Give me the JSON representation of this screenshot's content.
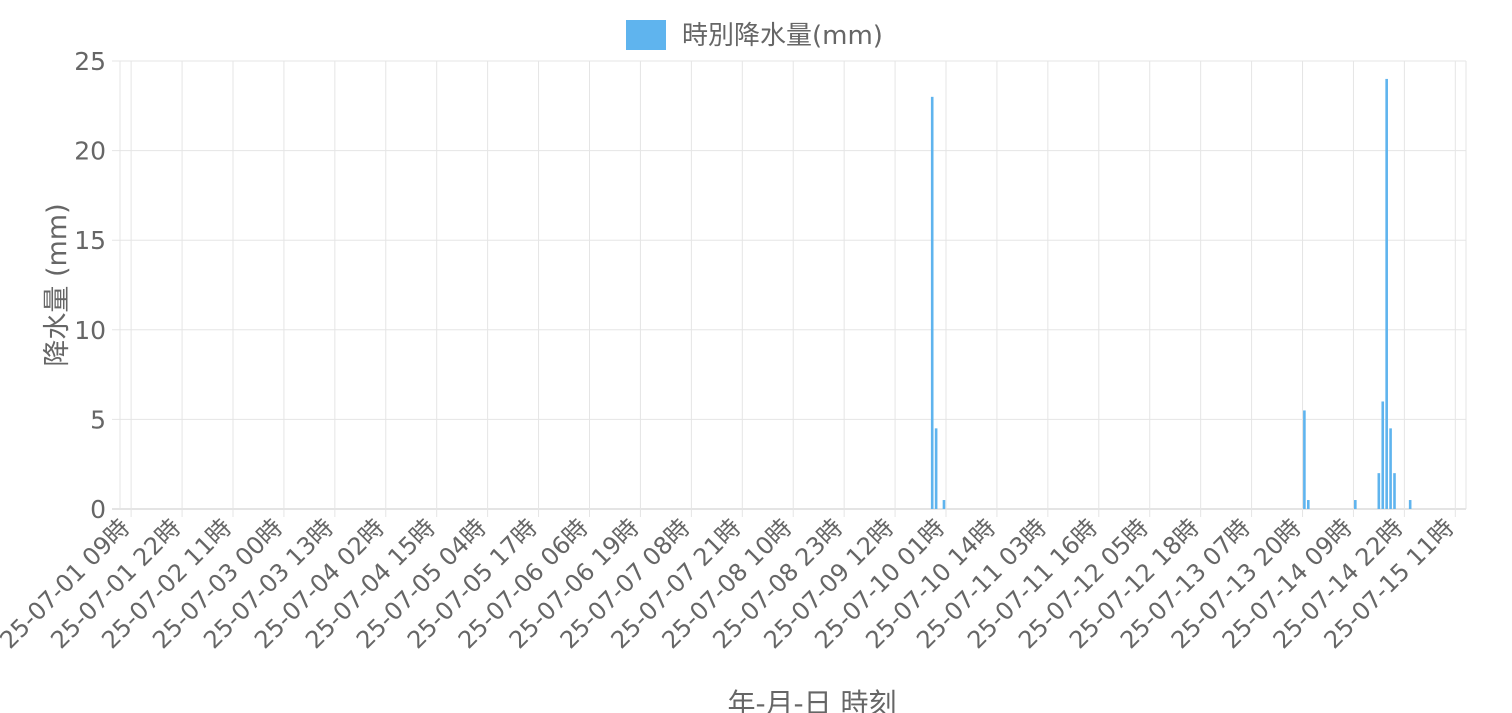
{
  "chart_data": {
    "type": "bar",
    "title": "",
    "legend": {
      "position": "top-center",
      "entries": [
        "時別降水量(mm)"
      ]
    },
    "xlabel": "年-月-日 時刻",
    "ylabel": "降水量 (mm)",
    "ylim": [
      0,
      25
    ],
    "yticks": [
      0,
      5,
      10,
      15,
      20,
      25
    ],
    "grid": true,
    "x_range": [
      "25-07-01 09時",
      "25-07-15 16時"
    ],
    "xticks": [
      "25-07-01 09時",
      "25-07-01 22時",
      "25-07-02 11時",
      "25-07-03 00時",
      "25-07-03 13時",
      "25-07-04 02時",
      "25-07-04 15時",
      "25-07-05 04時",
      "25-07-05 17時",
      "25-07-06 06時",
      "25-07-06 19時",
      "25-07-07 08時",
      "25-07-07 21時",
      "25-07-08 10時",
      "25-07-08 23時",
      "25-07-09 12時",
      "25-07-10 01時",
      "25-07-10 14時",
      "25-07-11 03時",
      "25-07-11 16時",
      "25-07-12 05時",
      "25-07-12 18時",
      "25-07-13 07時",
      "25-07-13 20時",
      "25-07-14 09時",
      "25-07-14 22時",
      "25-07-15 11時"
    ],
    "series": [
      {
        "name": "時別降水量(mm)",
        "color": "#5fb4ee",
        "points": [
          {
            "x": "25-07-09 21時",
            "y": 23.0
          },
          {
            "x": "25-07-09 22時",
            "y": 4.5
          },
          {
            "x": "25-07-10 00時",
            "y": 0.5
          },
          {
            "x": "25-07-13 20時",
            "y": 5.5
          },
          {
            "x": "25-07-13 21時",
            "y": 0.5
          },
          {
            "x": "25-07-14 09時",
            "y": 0.5
          },
          {
            "x": "25-07-14 15時",
            "y": 2.0
          },
          {
            "x": "25-07-14 16時",
            "y": 6.0
          },
          {
            "x": "25-07-14 17時",
            "y": 24.0
          },
          {
            "x": "25-07-14 18時",
            "y": 4.5
          },
          {
            "x": "25-07-14 19時",
            "y": 2.0
          },
          {
            "x": "25-07-14 23時",
            "y": 0.5
          }
        ]
      }
    ]
  }
}
